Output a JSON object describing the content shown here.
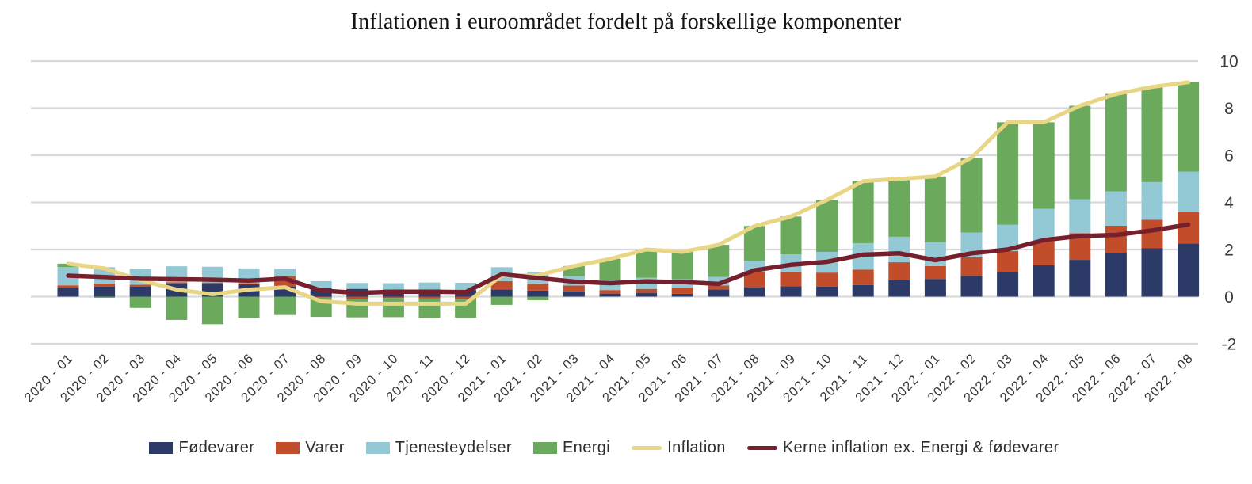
{
  "chart_data": {
    "type": "bar",
    "variant": "stacked-bar-with-lines",
    "title": "Inflationen i euroområdet fordelt på forskellige komponenter",
    "xlabel": "",
    "ylabel": "",
    "ylim": [
      -2,
      10
    ],
    "yticks": [
      -2,
      0,
      2,
      4,
      6,
      8,
      10
    ],
    "ytick_labels": [
      "-2",
      "0",
      "2",
      "4",
      "6",
      "8",
      "10"
    ],
    "y_axis_side": "right",
    "grid": true,
    "legend_position": "bottom",
    "colors": {
      "background": "#ffffff",
      "gridline": "#d9d9d9",
      "axis_text": "#3a3a3a",
      "title_text": "#141414",
      "food": "#2b3a66",
      "goods": "#c24d2b",
      "services": "#93c9d4",
      "energy": "#6baa5d",
      "inflation_line": "#e9d685",
      "core_line": "#76202d"
    },
    "categories": [
      "2020 - 01",
      "2020 - 02",
      "2020 - 03",
      "2020 - 04",
      "2020 - 05",
      "2020 - 06",
      "2020 - 07",
      "2020 - 08",
      "2020 - 09",
      "2020 - 10",
      "2020 - 11",
      "2020 - 12",
      "2021 - 01",
      "2021 - 02",
      "2021 - 03",
      "2021 - 04",
      "2021 - 05",
      "2021 - 06",
      "2021 - 07",
      "2021 - 08",
      "2021 - 09",
      "2021 - 10",
      "2021 - 11",
      "2021 - 12",
      "2022 - 01",
      "2022 - 02",
      "2022 - 03",
      "2022 - 04",
      "2022 - 05",
      "2022 - 06",
      "2022 - 07",
      "2022 - 08"
    ],
    "series": [
      {
        "name": "Fødevarer",
        "color": "#2b3a66",
        "values": [
          0.37,
          0.42,
          0.42,
          0.55,
          0.55,
          0.52,
          0.42,
          0.36,
          0.33,
          0.3,
          0.31,
          0.28,
          0.3,
          0.26,
          0.23,
          0.13,
          0.15,
          0.12,
          0.3,
          0.4,
          0.44,
          0.42,
          0.49,
          0.7,
          0.75,
          0.88,
          1.05,
          1.33,
          1.56,
          1.85,
          2.05,
          2.25
        ]
      },
      {
        "name": "Varer",
        "color": "#c24d2b",
        "values": [
          0.11,
          0.13,
          0.09,
          0.06,
          0.05,
          0.05,
          0.45,
          -0.04,
          -0.09,
          -0.06,
          -0.08,
          -0.12,
          0.36,
          0.28,
          0.24,
          0.15,
          0.18,
          0.26,
          0.17,
          0.65,
          0.59,
          0.6,
          0.66,
          0.76,
          0.55,
          0.79,
          0.88,
          1.02,
          1.13,
          1.16,
          1.21,
          1.33
        ]
      },
      {
        "name": "Tjenesteydelser",
        "color": "#93c9d4",
        "values": [
          0.78,
          0.7,
          0.67,
          0.68,
          0.67,
          0.63,
          0.31,
          0.3,
          0.25,
          0.27,
          0.29,
          0.31,
          0.59,
          0.51,
          0.4,
          0.42,
          0.47,
          0.36,
          0.37,
          0.47,
          0.76,
          0.88,
          1.12,
          1.08,
          1.0,
          1.05,
          1.12,
          1.38,
          1.44,
          1.46,
          1.6,
          1.73
        ]
      },
      {
        "name": "Energi",
        "color": "#6baa5d",
        "values": [
          0.14,
          -0.05,
          -0.48,
          -0.99,
          -1.17,
          -0.9,
          -0.78,
          -0.82,
          -0.79,
          -0.81,
          -0.82,
          -0.77,
          -0.35,
          -0.15,
          0.43,
          0.9,
          1.2,
          1.16,
          1.36,
          1.48,
          1.61,
          2.2,
          2.63,
          2.46,
          2.8,
          3.18,
          4.35,
          3.67,
          3.97,
          4.13,
          4.04,
          3.79
        ]
      }
    ],
    "lines": [
      {
        "name": "Inflation",
        "color": "#e9d685",
        "width": 5,
        "values": [
          1.4,
          1.2,
          0.7,
          0.3,
          0.1,
          0.3,
          0.4,
          -0.2,
          -0.3,
          -0.3,
          -0.3,
          -0.3,
          0.9,
          0.9,
          1.3,
          1.6,
          2.0,
          1.9,
          2.2,
          3.0,
          3.4,
          4.1,
          4.9,
          5.0,
          5.1,
          5.9,
          7.4,
          7.4,
          8.1,
          8.6,
          8.9,
          9.1
        ]
      },
      {
        "name": "Kerne inflation ex. Energi & fødevarer",
        "color": "#76202d",
        "width": 5.5,
        "values": [
          0.89,
          0.83,
          0.76,
          0.74,
          0.72,
          0.68,
          0.76,
          0.26,
          0.16,
          0.21,
          0.21,
          0.19,
          0.95,
          0.79,
          0.64,
          0.57,
          0.65,
          0.62,
          0.54,
          1.12,
          1.35,
          1.48,
          1.78,
          1.84,
          1.55,
          1.84,
          2.0,
          2.4,
          2.57,
          2.62,
          2.81,
          3.06
        ]
      }
    ]
  }
}
